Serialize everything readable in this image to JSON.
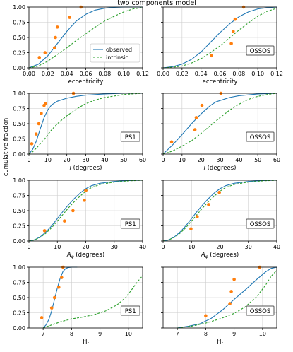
{
  "title": "two components model",
  "ylabel": "cumulative fraction",
  "legend": {
    "observed": "observed",
    "intrinsic": "intrinsic"
  },
  "colors": {
    "observed": "#1f77b4",
    "intrinsic": "#2ca02c",
    "points": "#ff7f0e",
    "grid": "#cccccc"
  },
  "chart_data": [
    {
      "type": "line",
      "row": 0,
      "col": 0,
      "survey": "PS1",
      "xlabel": "eccentricity",
      "xlim": [
        0,
        0.12
      ],
      "ylim": [
        0,
        1
      ],
      "xticks": [
        "0.00",
        "0.02",
        "0.04",
        "0.06",
        "0.08",
        "0.10",
        "0.12"
      ],
      "xtickvals": [
        0,
        0.02,
        0.04,
        0.06,
        0.08,
        0.1,
        0.12
      ],
      "yticks": [
        "0.00",
        "0.25",
        "0.50",
        "0.75",
        "1.00"
      ],
      "ytickvals": [
        0,
        0.25,
        0.5,
        0.75,
        1
      ],
      "legend": true,
      "series": [
        {
          "name": "observed",
          "style": "solid",
          "x": [
            0,
            0.01,
            0.02,
            0.03,
            0.04,
            0.05,
            0.06,
            0.07,
            0.08,
            0.09,
            0.1,
            0.11,
            0.12
          ],
          "y": [
            0,
            0.06,
            0.2,
            0.4,
            0.6,
            0.77,
            0.88,
            0.95,
            0.98,
            0.995,
            1,
            1,
            1
          ]
        },
        {
          "name": "intrinsic",
          "style": "dashed",
          "x": [
            0,
            0.01,
            0.02,
            0.03,
            0.04,
            0.05,
            0.06,
            0.07,
            0.08,
            0.09,
            0.1,
            0.11,
            0.12
          ],
          "y": [
            0,
            0.03,
            0.11,
            0.22,
            0.33,
            0.45,
            0.56,
            0.67,
            0.77,
            0.85,
            0.92,
            0.97,
            0.99
          ]
        }
      ],
      "points": {
        "x": [
          0.011,
          0.017,
          0.027,
          0.028,
          0.03,
          0.043,
          0.055
        ],
        "y": [
          0.17,
          0.25,
          0.33,
          0.5,
          0.67,
          0.83,
          1.0
        ]
      }
    },
    {
      "type": "line",
      "row": 0,
      "col": 1,
      "survey": "OSSOS",
      "xlabel": "eccentricity",
      "xlim": [
        0,
        0.12
      ],
      "ylim": [
        0,
        1
      ],
      "xticks": [
        "0.00",
        "0.02",
        "0.04",
        "0.06",
        "0.08",
        "0.10",
        "0.12"
      ],
      "xtickvals": [
        0,
        0.02,
        0.04,
        0.06,
        0.08,
        0.1,
        0.12
      ],
      "yticks": [],
      "ytickvals": [
        0,
        0.25,
        0.5,
        0.75,
        1
      ],
      "legend": false,
      "series": [
        {
          "name": "observed",
          "style": "solid",
          "x": [
            0,
            0.01,
            0.02,
            0.03,
            0.04,
            0.05,
            0.06,
            0.07,
            0.08,
            0.09,
            0.1,
            0.11,
            0.12
          ],
          "y": [
            0,
            0.02,
            0.06,
            0.14,
            0.26,
            0.42,
            0.58,
            0.72,
            0.84,
            0.92,
            0.97,
            0.99,
            1
          ]
        },
        {
          "name": "intrinsic",
          "style": "dashed",
          "x": [
            0,
            0.01,
            0.02,
            0.03,
            0.04,
            0.05,
            0.06,
            0.07,
            0.08,
            0.09,
            0.1,
            0.11,
            0.12
          ],
          "y": [
            0,
            0.01,
            0.03,
            0.08,
            0.15,
            0.25,
            0.36,
            0.49,
            0.62,
            0.74,
            0.85,
            0.93,
            0.98
          ]
        }
      ],
      "points": {
        "x": [
          0.051,
          0.072,
          0.074,
          0.076,
          0.085
        ],
        "y": [
          0.2,
          0.4,
          0.6,
          0.8,
          1.0
        ]
      }
    },
    {
      "type": "line",
      "row": 1,
      "col": 0,
      "survey": "PS1",
      "xlabel": "i (degrees)",
      "xlim": [
        0,
        60
      ],
      "ylim": [
        0,
        1
      ],
      "xticks": [
        "0",
        "10",
        "20",
        "30",
        "40",
        "50",
        "60"
      ],
      "xtickvals": [
        0,
        10,
        20,
        30,
        40,
        50,
        60
      ],
      "yticks": [
        "0.00",
        "0.25",
        "0.50",
        "0.75",
        "1.00"
      ],
      "ytickvals": [
        0,
        0.25,
        0.5,
        0.75,
        1
      ],
      "legend": false,
      "series": [
        {
          "name": "observed",
          "style": "solid",
          "x": [
            0,
            2,
            4,
            6,
            8,
            10,
            12,
            15,
            20,
            25,
            30,
            40,
            50,
            60
          ],
          "y": [
            0,
            0.08,
            0.22,
            0.42,
            0.6,
            0.73,
            0.81,
            0.87,
            0.92,
            0.95,
            0.97,
            0.99,
            1,
            1
          ]
        },
        {
          "name": "intrinsic",
          "style": "dashed",
          "x": [
            0,
            2,
            4,
            6,
            8,
            10,
            12,
            15,
            20,
            25,
            30,
            35,
            40,
            50,
            60
          ],
          "y": [
            0,
            0.04,
            0.1,
            0.17,
            0.24,
            0.32,
            0.4,
            0.5,
            0.63,
            0.74,
            0.83,
            0.89,
            0.93,
            0.98,
            1
          ]
        }
      ],
      "points": {
        "x": [
          1.5,
          3.8,
          5.2,
          6.5,
          8.0,
          8.8,
          23.5
        ],
        "y": [
          0.17,
          0.33,
          0.5,
          0.67,
          0.8,
          0.83,
          1.0
        ]
      }
    },
    {
      "type": "line",
      "row": 1,
      "col": 1,
      "survey": "OSSOS",
      "xlabel": "i (degrees)",
      "xlim": [
        0,
        60
      ],
      "ylim": [
        0,
        1
      ],
      "xticks": [
        "0",
        "10",
        "20",
        "30",
        "40",
        "50",
        "60"
      ],
      "xtickvals": [
        0,
        10,
        20,
        30,
        40,
        50,
        60
      ],
      "yticks": [],
      "ytickvals": [
        0,
        0.25,
        0.5,
        0.75,
        1
      ],
      "legend": false,
      "series": [
        {
          "name": "observed",
          "style": "solid",
          "x": [
            0,
            5,
            10,
            15,
            20,
            25,
            28,
            30,
            35,
            40,
            50,
            60
          ],
          "y": [
            0,
            0.15,
            0.32,
            0.5,
            0.66,
            0.8,
            0.86,
            0.88,
            0.93,
            0.96,
            0.99,
            1
          ]
        },
        {
          "name": "intrinsic",
          "style": "dashed",
          "x": [
            0,
            5,
            10,
            15,
            20,
            25,
            30,
            35,
            40,
            45,
            50,
            55,
            60
          ],
          "y": [
            0,
            0.05,
            0.13,
            0.22,
            0.34,
            0.47,
            0.6,
            0.72,
            0.82,
            0.9,
            0.95,
            0.98,
            1
          ]
        }
      ],
      "points": {
        "x": [
          4.5,
          16.8,
          17.5,
          20.5,
          30.5
        ],
        "y": [
          0.2,
          0.4,
          0.6,
          0.8,
          1.0
        ]
      }
    },
    {
      "type": "line",
      "row": 2,
      "col": 0,
      "survey": "PS1",
      "xlabel": "Aφ (degrees)",
      "xlim": [
        0,
        40
      ],
      "ylim": [
        0,
        1
      ],
      "xticks": [
        "0",
        "10",
        "20",
        "30",
        "40"
      ],
      "xtickvals": [
        0,
        10,
        20,
        30,
        40
      ],
      "yticks": [
        "0.00",
        "0.25",
        "0.50",
        "0.75",
        "1.00"
      ],
      "ytickvals": [
        0,
        0.25,
        0.5,
        0.75,
        1
      ],
      "legend": false,
      "series": [
        {
          "name": "observed",
          "style": "solid",
          "x": [
            0,
            2,
            4,
            6,
            8,
            10,
            12,
            14,
            16,
            18,
            20,
            22,
            25,
            30,
            35,
            40
          ],
          "y": [
            0,
            0.02,
            0.07,
            0.15,
            0.25,
            0.37,
            0.49,
            0.6,
            0.7,
            0.79,
            0.86,
            0.91,
            0.95,
            0.98,
            0.995,
            1
          ]
        },
        {
          "name": "intrinsic",
          "style": "dashed",
          "x": [
            0,
            2,
            4,
            6,
            8,
            10,
            12,
            14,
            16,
            18,
            20,
            22,
            25,
            30,
            35,
            40
          ],
          "y": [
            0,
            0.02,
            0.06,
            0.13,
            0.22,
            0.33,
            0.44,
            0.55,
            0.65,
            0.74,
            0.82,
            0.88,
            0.93,
            0.97,
            0.99,
            1
          ]
        }
      ],
      "points": {
        "x": [
          5.5,
          12.5,
          15.5,
          19.5,
          20.0
        ],
        "y": [
          0.17,
          0.33,
          0.5,
          0.67,
          0.83
        ]
      }
    },
    {
      "type": "line",
      "row": 2,
      "col": 1,
      "survey": "OSSOS",
      "xlabel": "Aφ (degrees)",
      "xlim": [
        0,
        40
      ],
      "ylim": [
        0,
        1
      ],
      "xticks": [
        "0",
        "10",
        "20",
        "30",
        "40"
      ],
      "xtickvals": [
        0,
        10,
        20,
        30,
        40
      ],
      "yticks": [],
      "ytickvals": [
        0,
        0.25,
        0.5,
        0.75,
        1
      ],
      "legend": false,
      "series": [
        {
          "name": "observed",
          "style": "solid",
          "x": [
            0,
            2,
            4,
            6,
            8,
            10,
            12,
            14,
            16,
            18,
            20,
            22,
            25,
            30,
            35,
            40
          ],
          "y": [
            0,
            0.02,
            0.07,
            0.15,
            0.25,
            0.37,
            0.49,
            0.6,
            0.7,
            0.79,
            0.86,
            0.91,
            0.95,
            0.98,
            0.995,
            1
          ]
        },
        {
          "name": "intrinsic",
          "style": "dashed",
          "x": [
            0,
            2,
            4,
            6,
            8,
            10,
            12,
            14,
            16,
            18,
            20,
            22,
            25,
            30,
            35,
            40
          ],
          "y": [
            0,
            0.02,
            0.06,
            0.13,
            0.22,
            0.33,
            0.44,
            0.55,
            0.65,
            0.74,
            0.82,
            0.88,
            0.93,
            0.97,
            0.99,
            1
          ]
        }
      ],
      "points": {
        "x": [
          9.8,
          12.0,
          16.0,
          19.8
        ],
        "y": [
          0.2,
          0.4,
          0.6,
          0.8
        ]
      }
    },
    {
      "type": "line",
      "row": 3,
      "col": 0,
      "survey": "PS1",
      "xlabel": "Hr",
      "xlim": [
        6.5,
        10.5
      ],
      "ylim": [
        0,
        1
      ],
      "xticks": [
        "7",
        "8",
        "9",
        "10"
      ],
      "xtickvals": [
        7,
        8,
        9,
        10
      ],
      "yticks": [
        "0.00",
        "0.25",
        "0.50",
        "0.75",
        "1.00"
      ],
      "ytickvals": [
        0,
        0.25,
        0.5,
        0.75,
        1
      ],
      "legend": false,
      "series": [
        {
          "name": "observed",
          "style": "solid",
          "x": [
            7.0,
            7.1,
            7.2,
            7.3,
            7.4,
            7.5,
            7.6,
            7.7,
            7.8,
            7.9,
            8.0,
            8.1,
            8.2
          ],
          "y": [
            0,
            0.05,
            0.14,
            0.28,
            0.47,
            0.66,
            0.82,
            0.93,
            0.98,
            0.995,
            1,
            1,
            1
          ]
        },
        {
          "name": "intrinsic",
          "style": "dashed",
          "x": [
            7.0,
            7.3,
            7.6,
            8.0,
            8.4,
            8.8,
            9.2,
            9.6,
            9.9,
            10.1,
            10.3,
            10.5
          ],
          "y": [
            0,
            0.05,
            0.1,
            0.15,
            0.18,
            0.22,
            0.28,
            0.38,
            0.5,
            0.62,
            0.75,
            0.86
          ]
        }
      ],
      "points": {
        "x": [
          6.95,
          7.3,
          7.4,
          7.55,
          7.65,
          7.7
        ],
        "y": [
          0.17,
          0.33,
          0.5,
          0.67,
          0.83,
          1.0
        ]
      }
    },
    {
      "type": "line",
      "row": 3,
      "col": 1,
      "survey": "OSSOS",
      "xlabel": "Hr",
      "xlim": [
        6.5,
        10.5
      ],
      "ylim": [
        0,
        1
      ],
      "xticks": [
        "7",
        "8",
        "9",
        "10"
      ],
      "xtickvals": [
        7,
        8,
        9,
        10
      ],
      "yticks": [],
      "ytickvals": [
        0,
        0.25,
        0.5,
        0.75,
        1
      ],
      "legend": false,
      "series": [
        {
          "name": "observed",
          "style": "solid",
          "x": [
            7.0,
            7.4,
            7.8,
            8.2,
            8.6,
            9.0,
            9.4,
            9.8,
            10.1,
            10.3,
            10.5
          ],
          "y": [
            0,
            0.03,
            0.07,
            0.16,
            0.3,
            0.47,
            0.63,
            0.8,
            0.92,
            0.98,
            1
          ]
        },
        {
          "name": "intrinsic",
          "style": "dashed",
          "x": [
            7.0,
            7.5,
            8.0,
            8.5,
            9.0,
            9.4,
            9.8,
            10.1,
            10.3,
            10.5
          ],
          "y": [
            0,
            0.03,
            0.08,
            0.15,
            0.24,
            0.35,
            0.52,
            0.7,
            0.85,
            0.95
          ]
        }
      ],
      "points": {
        "x": [
          8.0,
          8.85,
          8.9,
          9.0,
          9.9
        ],
        "y": [
          0.2,
          0.4,
          0.6,
          0.8,
          1.0
        ]
      }
    }
  ]
}
